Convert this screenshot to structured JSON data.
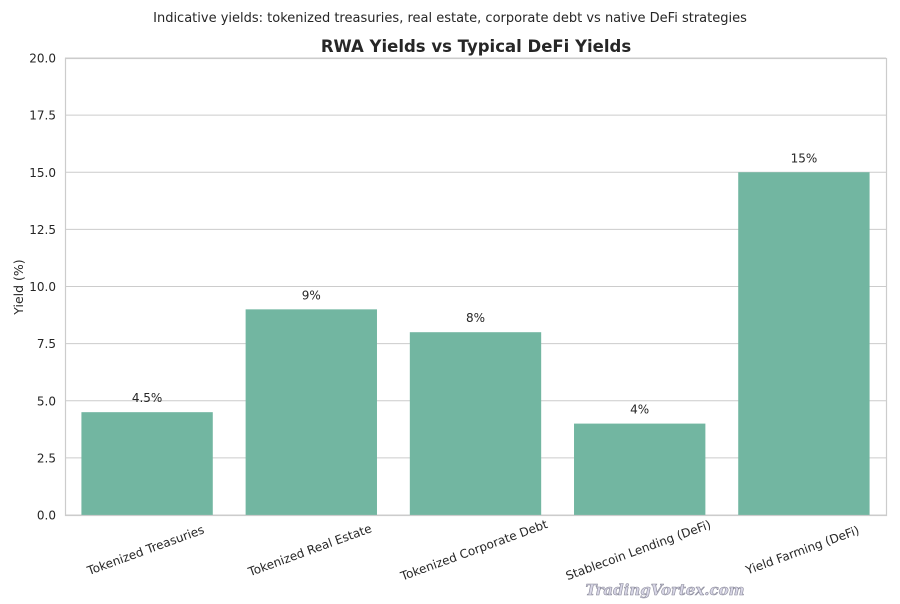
{
  "suptitle": "Indicative yields: tokenized treasuries, real estate, corporate debt vs native DeFi strategies",
  "watermark": "TradingVortex.com",
  "chart_data": {
    "type": "bar",
    "title": "RWA Yields vs Typical DeFi Yields",
    "xlabel": "",
    "ylabel": "Yield (%)",
    "categories": [
      "Tokenized Treasuries",
      "Tokenized Real Estate",
      "Tokenized Corporate Debt",
      "Stablecoin Lending (DeFi)",
      "Yield Farming (DeFi)"
    ],
    "values": [
      4.5,
      9,
      8,
      4,
      15
    ],
    "data_labels": [
      "4.5%",
      "9%",
      "8%",
      "4%",
      "15%"
    ],
    "ylim": [
      0,
      20
    ],
    "yticks": [
      "0.0",
      "2.5",
      "5.0",
      "7.5",
      "10.0",
      "12.5",
      "15.0",
      "17.5",
      "20.0"
    ],
    "grid": "horizontal",
    "bar_color": "#72b6a1"
  }
}
